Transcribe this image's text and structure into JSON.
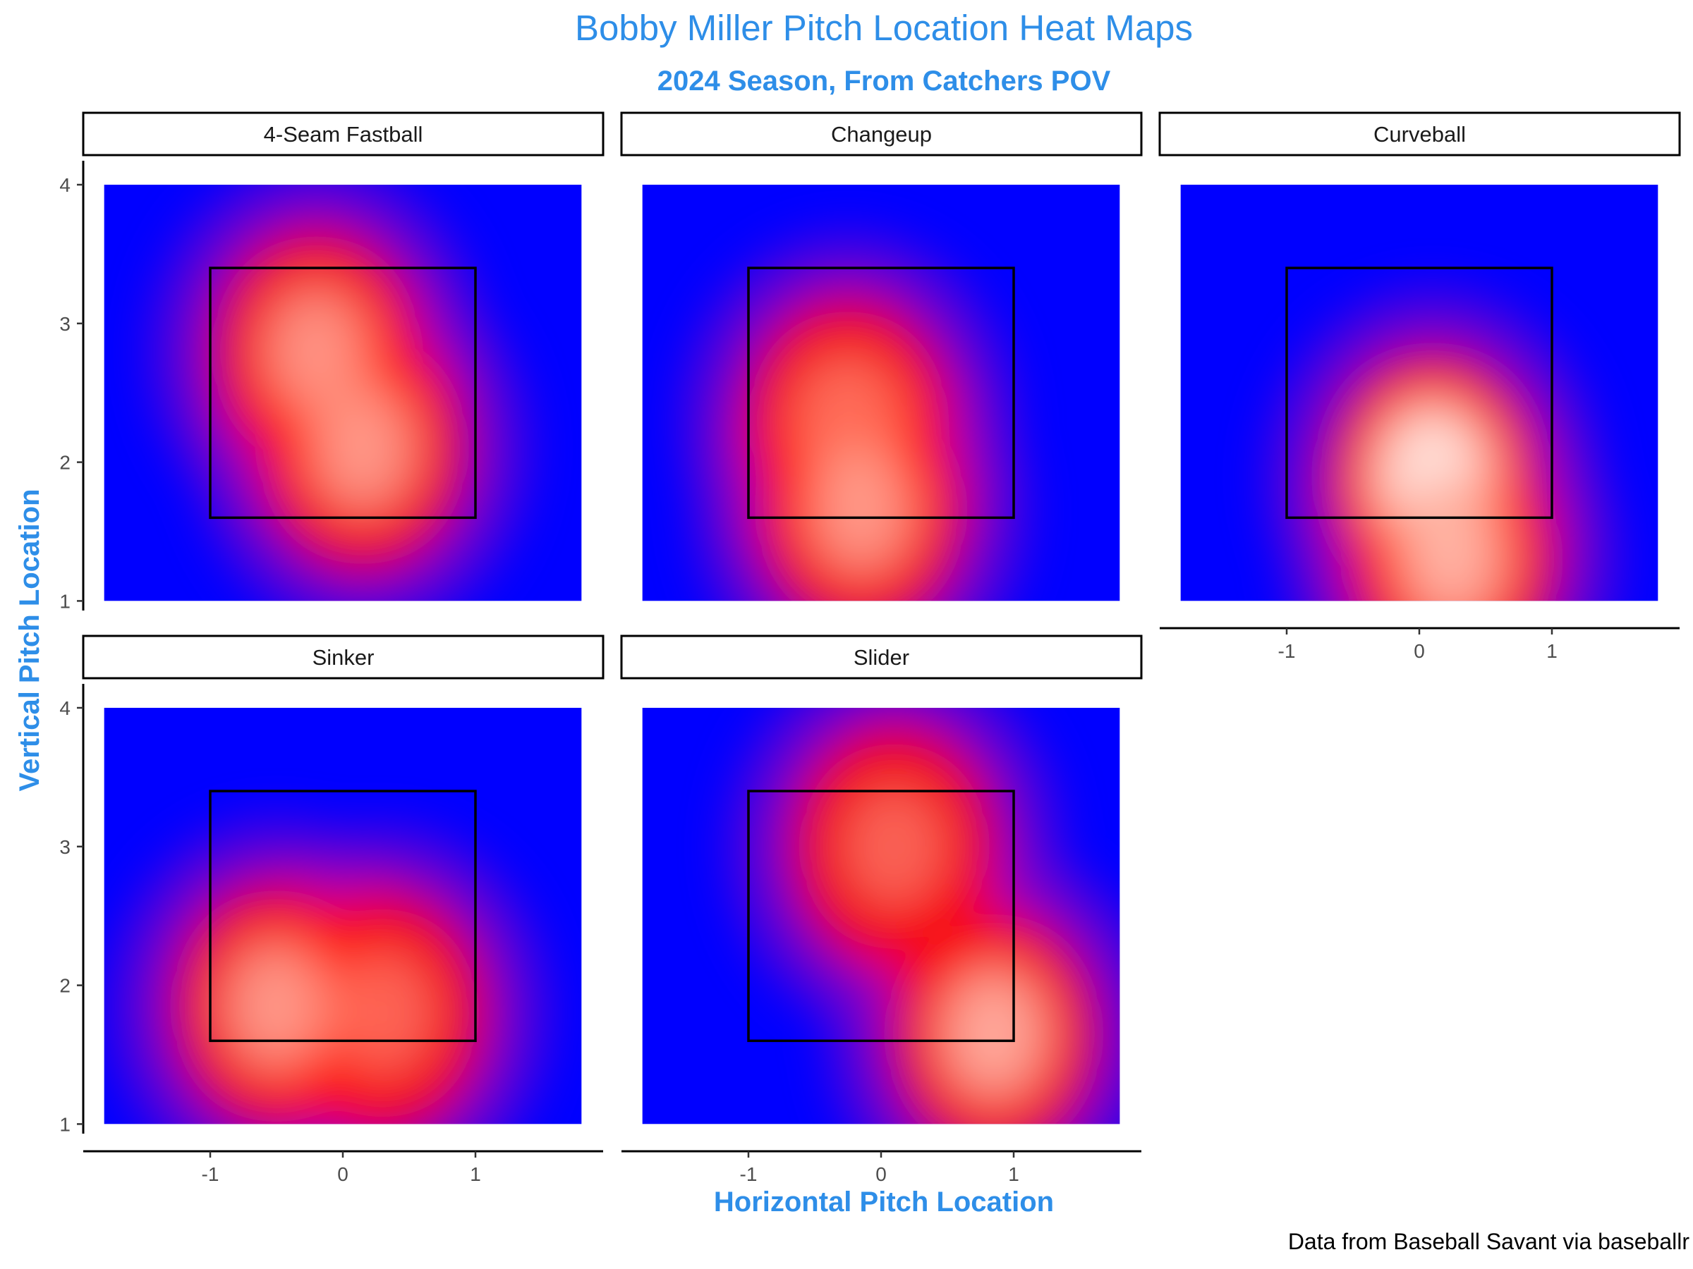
{
  "title": "Bobby Miller Pitch Location Heat Maps",
  "subtitle": "2024 Season, From Catchers POV",
  "xlabel": "Horizontal Pitch Location",
  "ylabel": "Vertical Pitch Location",
  "caption": "Data from Baseball Savant via baseballr",
  "colors": {
    "title": "#2e8ee8",
    "low": "#0000ff",
    "mid": "#ff0000",
    "high": "#ffffff",
    "strike_zone": "#000000"
  },
  "chart_data": {
    "type": "heatmap",
    "facet_layout": "3 columns x 2 rows",
    "xlim": [
      -1.8,
      1.8
    ],
    "ylim": [
      1,
      4
    ],
    "x_ticks": [
      -1,
      0,
      1
    ],
    "y_ticks": [
      1,
      2,
      3,
      4
    ],
    "strike_zone": {
      "x": [
        -1,
        1
      ],
      "y": [
        1.6,
        3.4
      ]
    },
    "grid": false,
    "panels": [
      {
        "name": "4-Seam Fastball",
        "hotspots": [
          {
            "x": -0.2,
            "y": 2.8,
            "intensity": 0.6
          },
          {
            "x": 0.15,
            "y": 2.1,
            "intensity": 0.62
          }
        ]
      },
      {
        "name": "Changeup",
        "hotspots": [
          {
            "x": -0.25,
            "y": 2.3,
            "intensity": 0.48
          },
          {
            "x": -0.15,
            "y": 1.65,
            "intensity": 0.62
          }
        ]
      },
      {
        "name": "Curveball",
        "hotspots": [
          {
            "x": 0.1,
            "y": 1.9,
            "intensity": 1.0
          },
          {
            "x": 0.25,
            "y": 1.3,
            "intensity": 0.72
          }
        ]
      },
      {
        "name": "Sinker",
        "hotspots": [
          {
            "x": -0.5,
            "y": 1.85,
            "intensity": 0.62
          },
          {
            "x": 0.3,
            "y": 1.8,
            "intensity": 0.38
          }
        ]
      },
      {
        "name": "Slider",
        "hotspots": [
          {
            "x": 0.1,
            "y": 3.0,
            "intensity": 0.35
          },
          {
            "x": 0.85,
            "y": 1.65,
            "intensity": 0.7
          }
        ]
      }
    ]
  }
}
